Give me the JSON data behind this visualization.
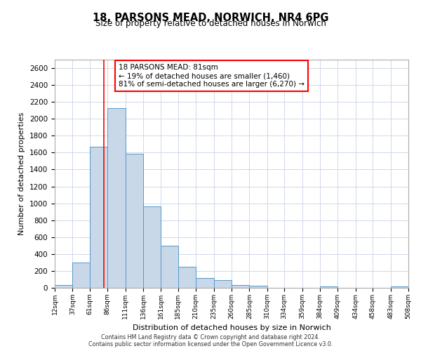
{
  "title": "18, PARSONS MEAD, NORWICH, NR4 6PG",
  "subtitle": "Size of property relative to detached houses in Norwich",
  "xlabel": "Distribution of detached houses by size in Norwich",
  "ylabel": "Number of detached properties",
  "bar_color": "#c8d8e8",
  "bar_edge_color": "#5599cc",
  "grid_color": "#d0d8e8",
  "background_color": "#ffffff",
  "vline_x": 81,
  "vline_color": "red",
  "annotation_lines": [
    "18 PARSONS MEAD: 81sqm",
    "← 19% of detached houses are smaller (1,460)",
    "81% of semi-detached houses are larger (6,270) →"
  ],
  "bin_edges": [
    12,
    37,
    61,
    86,
    111,
    136,
    161,
    185,
    210,
    235,
    260,
    285,
    310,
    334,
    359,
    384,
    409,
    434,
    458,
    483,
    508
  ],
  "bin_heights": [
    30,
    300,
    1670,
    2130,
    1590,
    960,
    500,
    250,
    120,
    90,
    30,
    25,
    0,
    0,
    0,
    15,
    0,
    0,
    0,
    20
  ],
  "ylim": [
    0,
    2700
  ],
  "yticks": [
    0,
    200,
    400,
    600,
    800,
    1000,
    1200,
    1400,
    1600,
    1800,
    2000,
    2200,
    2400,
    2600
  ],
  "xtick_labels": [
    "12sqm",
    "37sqm",
    "61sqm",
    "86sqm",
    "111sqm",
    "136sqm",
    "161sqm",
    "185sqm",
    "210sqm",
    "235sqm",
    "260sqm",
    "285sqm",
    "310sqm",
    "334sqm",
    "359sqm",
    "384sqm",
    "409sqm",
    "434sqm",
    "458sqm",
    "483sqm",
    "508sqm"
  ],
  "footer_line1": "Contains HM Land Registry data © Crown copyright and database right 2024.",
  "footer_line2": "Contains public sector information licensed under the Open Government Licence v3.0."
}
